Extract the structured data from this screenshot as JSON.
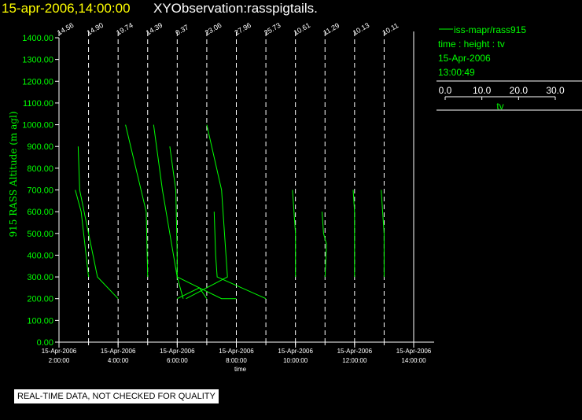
{
  "header": {
    "date_time": "15-apr-2006,14:00:00",
    "observation": "XYObservation:rasspigtails."
  },
  "legend": {
    "series_label": "iss-mapr/rass915",
    "variables": "time : height : tv",
    "date": "15-Apr-2006",
    "time": "13:00:49",
    "scale_ticks": [
      "0.0",
      "10.0",
      "20.0",
      "30.0"
    ],
    "scale_label": "tv"
  },
  "notice": "REAL-TIME DATA, NOT CHECKED FOR QUALITY",
  "colors": {
    "data": "#00ff00",
    "axis": "#ffffff",
    "title": "#ffff00",
    "background": "#000000"
  },
  "chart_data": {
    "type": "line",
    "xlabel": "time",
    "ylabel": "915 RASS Altitude (m agl)",
    "ylim": [
      0,
      1400
    ],
    "xlim": [
      "2:00:00",
      "14:00:00"
    ],
    "yticks": [
      "0.00",
      "100.00",
      "200.00",
      "300.00",
      "400.00",
      "500.00",
      "600.00",
      "700.00",
      "800.00",
      "900.00",
      "1000.00",
      "1100.00",
      "1200.00",
      "1300.00",
      "1400.00"
    ],
    "xticks": [
      {
        "date": "15-Apr-2006",
        "time": "2:00:00"
      },
      {
        "date": "15-Apr-2006",
        "time": "4:00:00"
      },
      {
        "date": "15-Apr-2006",
        "time": "6:00:00"
      },
      {
        "date": "15-Apr-2006",
        "time": "8:00:00"
      },
      {
        "date": "15-Apr-2006",
        "time": "10:00:00"
      },
      {
        "date": "15-Apr-2006",
        "time": "12:00:00"
      },
      {
        "date": "15-Apr-2006",
        "time": "14:00:00"
      }
    ],
    "profiles": [
      {
        "time": "2:00:00",
        "label": "14.56"
      },
      {
        "time": "3:00:00",
        "label": "14.90"
      },
      {
        "time": "4:00:00",
        "label": "19.74"
      },
      {
        "time": "5:00:00",
        "label": "14.39"
      },
      {
        "time": "6:00:00",
        "label": "0.37"
      },
      {
        "time": "7:00:00",
        "label": "23.06"
      },
      {
        "time": "8:00:00",
        "label": "27.96"
      },
      {
        "time": "9:00:00",
        "label": "25.73"
      },
      {
        "time": "10:00:00",
        "label": "10.61"
      },
      {
        "time": "11:00:00",
        "label": "11.29"
      },
      {
        "time": "12:00:00",
        "label": "10.13"
      },
      {
        "time": "13:00:00",
        "label": "10.11"
      }
    ],
    "series": [
      {
        "points": [
          [
            2.55,
            700
          ],
          [
            2.75,
            600
          ],
          [
            3.0,
            300
          ]
        ]
      },
      {
        "points": [
          [
            2.65,
            900
          ],
          [
            2.7,
            700
          ],
          [
            3.0,
            500
          ],
          [
            3.3,
            300
          ],
          [
            4.0,
            200
          ]
        ]
      },
      {
        "points": [
          [
            4.25,
            1000
          ],
          [
            4.95,
            600
          ],
          [
            5.0,
            300
          ]
        ]
      },
      {
        "points": [
          [
            5.2,
            1000
          ],
          [
            5.5,
            700
          ],
          [
            5.75,
            500
          ],
          [
            6.0,
            300
          ],
          [
            6.2,
            200
          ]
        ]
      },
      {
        "points": [
          [
            5.75,
            900
          ],
          [
            5.95,
            700
          ],
          [
            6.0,
            400
          ],
          [
            6.0,
            300
          ],
          [
            7.5,
            200
          ],
          [
            8.0,
            200
          ]
        ]
      },
      {
        "points": [
          [
            6.0,
            200
          ],
          [
            6.75,
            250
          ],
          [
            7.0,
            200
          ]
        ]
      },
      {
        "points": [
          [
            7.0,
            1000
          ],
          [
            7.5,
            700
          ],
          [
            7.7,
            300
          ],
          [
            6.3,
            200
          ]
        ]
      },
      {
        "points": [
          [
            7.25,
            600
          ],
          [
            7.3,
            400
          ],
          [
            7.35,
            300
          ],
          [
            9.0,
            200
          ]
        ]
      },
      {
        "points": [
          [
            9.9,
            700
          ],
          [
            9.95,
            600
          ],
          [
            10.0,
            500
          ],
          [
            10.0,
            300
          ]
        ]
      },
      {
        "points": [
          [
            10.9,
            600
          ],
          [
            10.95,
            500
          ],
          [
            11.05,
            450
          ],
          [
            11.0,
            300
          ]
        ]
      },
      {
        "points": [
          [
            11.95,
            700
          ],
          [
            12.0,
            600
          ],
          [
            12.0,
            300
          ]
        ]
      },
      {
        "points": [
          [
            12.9,
            700
          ],
          [
            12.95,
            600
          ],
          [
            13.0,
            500
          ],
          [
            13.0,
            300
          ]
        ]
      }
    ]
  }
}
